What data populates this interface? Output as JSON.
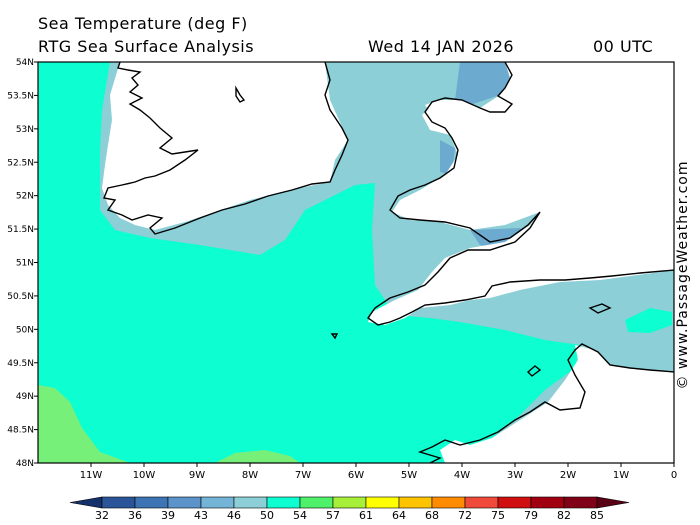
{
  "header": {
    "title": "Sea Temperature (deg F)",
    "subtitle": "RTG Sea Surface Analysis",
    "date": "Wed 14 JAN 2026",
    "time": "00 UTC"
  },
  "watermark": "© www.PassageWeather.com",
  "map": {
    "lat_labels": [
      "54N",
      "53.5N",
      "53N",
      "52.5N",
      "52N",
      "51.5N",
      "51N",
      "50.5N",
      "50N",
      "49.5N",
      "49N",
      "48.5N",
      "48N"
    ],
    "lon_labels": [
      "11W",
      "10W",
      "9W",
      "8W",
      "7W",
      "6W",
      "5W",
      "4W",
      "3W",
      "2W",
      "1W",
      "0"
    ],
    "colors": {
      "sea_54": "#0dfed0",
      "sea_50": "#8ccfd6",
      "sea_46": "#6daad0",
      "sea_57": "#77f07a",
      "land": "#ffffff",
      "coast": "#000000"
    }
  },
  "legend": {
    "labels": [
      "32",
      "36",
      "39",
      "43",
      "46",
      "50",
      "54",
      "57",
      "61",
      "64",
      "68",
      "72",
      "75",
      "79",
      "82",
      "85"
    ],
    "colors": [
      "#15316b",
      "#2a5598",
      "#3c74b4",
      "#5c93cb",
      "#74b4d6",
      "#8ccfd6",
      "#0dfed0",
      "#4ff06a",
      "#a8ef3a",
      "#ffff00",
      "#ffc400",
      "#ff8c00",
      "#f04a3a",
      "#d01010",
      "#a00010",
      "#800018",
      "#5a0014"
    ]
  }
}
